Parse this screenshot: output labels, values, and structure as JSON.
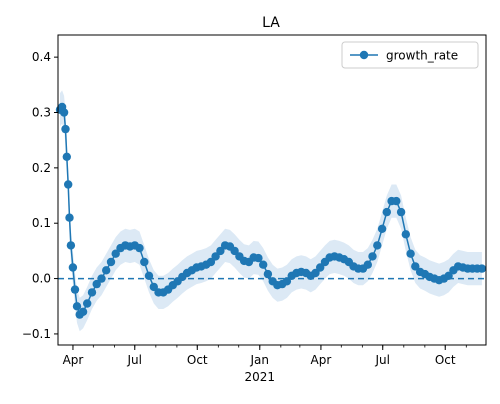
{
  "chart_data": {
    "type": "line",
    "title": "LA",
    "xlabel": "",
    "ylabel": "",
    "x_axis": {
      "type": "date",
      "range": [
        "2020-03-10",
        "2021-11-30"
      ],
      "major_ticks": [
        {
          "date": "2020-04-01",
          "label": "Apr"
        },
        {
          "date": "2020-07-01",
          "label": "Jul"
        },
        {
          "date": "2020-10-01",
          "label": "Oct"
        },
        {
          "date": "2021-01-01",
          "label": "Jan"
        },
        {
          "date": "2021-04-01",
          "label": "Apr"
        },
        {
          "date": "2021-07-01",
          "label": "Jul"
        },
        {
          "date": "2021-10-01",
          "label": "Oct"
        }
      ],
      "year_label": {
        "date": "2021-01-01",
        "label": "2021"
      }
    },
    "y_axis": {
      "range": [
        -0.12,
        0.44
      ],
      "ticks": [
        -0.1,
        0.0,
        0.1,
        0.2,
        0.3,
        0.4
      ],
      "tick_labels": [
        "−0.1",
        "0.0",
        "0.1",
        "0.2",
        "0.3",
        "0.4"
      ]
    },
    "grid": false,
    "legend": {
      "placement": "top-right"
    },
    "reference_line": {
      "y": 0.0,
      "style": "dashed"
    },
    "colors": {
      "series": "#1f77b4",
      "band": "#dce9f5"
    },
    "series": [
      {
        "name": "growth_rate",
        "band_halfwidth": 0.03,
        "points": [
          [
            "2020-03-13",
            0.305
          ],
          [
            "2020-03-16",
            0.31
          ],
          [
            "2020-03-19",
            0.3
          ],
          [
            "2020-03-21",
            0.27
          ],
          [
            "2020-03-23",
            0.22
          ],
          [
            "2020-03-25",
            0.17
          ],
          [
            "2020-03-27",
            0.11
          ],
          [
            "2020-03-29",
            0.06
          ],
          [
            "2020-04-01",
            0.02
          ],
          [
            "2020-04-04",
            -0.02
          ],
          [
            "2020-04-07",
            -0.05
          ],
          [
            "2020-04-11",
            -0.065
          ],
          [
            "2020-04-16",
            -0.06
          ],
          [
            "2020-04-22",
            -0.045
          ],
          [
            "2020-04-29",
            -0.025
          ],
          [
            "2020-05-06",
            -0.01
          ],
          [
            "2020-05-13",
            0.0
          ],
          [
            "2020-05-20",
            0.015
          ],
          [
            "2020-05-27",
            0.03
          ],
          [
            "2020-06-03",
            0.045
          ],
          [
            "2020-06-10",
            0.055
          ],
          [
            "2020-06-17",
            0.06
          ],
          [
            "2020-06-24",
            0.058
          ],
          [
            "2020-07-01",
            0.06
          ],
          [
            "2020-07-08",
            0.055
          ],
          [
            "2020-07-15",
            0.03
          ],
          [
            "2020-07-22",
            0.005
          ],
          [
            "2020-07-29",
            -0.015
          ],
          [
            "2020-08-05",
            -0.025
          ],
          [
            "2020-08-12",
            -0.025
          ],
          [
            "2020-08-19",
            -0.02
          ],
          [
            "2020-08-26",
            -0.012
          ],
          [
            "2020-09-02",
            -0.005
          ],
          [
            "2020-09-09",
            0.003
          ],
          [
            "2020-09-16",
            0.01
          ],
          [
            "2020-09-23",
            0.015
          ],
          [
            "2020-09-30",
            0.02
          ],
          [
            "2020-10-07",
            0.022
          ],
          [
            "2020-10-14",
            0.025
          ],
          [
            "2020-10-21",
            0.03
          ],
          [
            "2020-10-28",
            0.04
          ],
          [
            "2020-11-04",
            0.05
          ],
          [
            "2020-11-11",
            0.06
          ],
          [
            "2020-11-18",
            0.058
          ],
          [
            "2020-11-25",
            0.05
          ],
          [
            "2020-12-02",
            0.04
          ],
          [
            "2020-12-09",
            0.032
          ],
          [
            "2020-12-16",
            0.03
          ],
          [
            "2020-12-23",
            0.038
          ],
          [
            "2020-12-30",
            0.037
          ],
          [
            "2021-01-06",
            0.025
          ],
          [
            "2021-01-13",
            0.008
          ],
          [
            "2021-01-20",
            -0.005
          ],
          [
            "2021-01-27",
            -0.012
          ],
          [
            "2021-02-03",
            -0.01
          ],
          [
            "2021-02-10",
            -0.005
          ],
          [
            "2021-02-17",
            0.005
          ],
          [
            "2021-02-24",
            0.01
          ],
          [
            "2021-03-03",
            0.012
          ],
          [
            "2021-03-10",
            0.01
          ],
          [
            "2021-03-17",
            0.005
          ],
          [
            "2021-03-24",
            0.01
          ],
          [
            "2021-03-31",
            0.02
          ],
          [
            "2021-04-07",
            0.03
          ],
          [
            "2021-04-14",
            0.038
          ],
          [
            "2021-04-21",
            0.04
          ],
          [
            "2021-04-28",
            0.038
          ],
          [
            "2021-05-05",
            0.035
          ],
          [
            "2021-05-12",
            0.03
          ],
          [
            "2021-05-19",
            0.022
          ],
          [
            "2021-05-26",
            0.018
          ],
          [
            "2021-06-02",
            0.018
          ],
          [
            "2021-06-09",
            0.025
          ],
          [
            "2021-06-16",
            0.04
          ],
          [
            "2021-06-23",
            0.06
          ],
          [
            "2021-06-30",
            0.09
          ],
          [
            "2021-07-07",
            0.12
          ],
          [
            "2021-07-14",
            0.14
          ],
          [
            "2021-07-21",
            0.14
          ],
          [
            "2021-07-28",
            0.12
          ],
          [
            "2021-08-04",
            0.08
          ],
          [
            "2021-08-11",
            0.045
          ],
          [
            "2021-08-18",
            0.022
          ],
          [
            "2021-08-25",
            0.012
          ],
          [
            "2021-09-01",
            0.008
          ],
          [
            "2021-09-08",
            0.003
          ],
          [
            "2021-09-15",
            0.0
          ],
          [
            "2021-09-22",
            -0.003
          ],
          [
            "2021-09-29",
            0.0
          ],
          [
            "2021-10-06",
            0.005
          ],
          [
            "2021-10-13",
            0.015
          ],
          [
            "2021-10-20",
            0.022
          ],
          [
            "2021-10-27",
            0.02
          ],
          [
            "2021-11-03",
            0.018
          ],
          [
            "2021-11-10",
            0.018
          ],
          [
            "2021-11-17",
            0.018
          ],
          [
            "2021-11-24",
            0.018
          ]
        ]
      }
    ]
  }
}
